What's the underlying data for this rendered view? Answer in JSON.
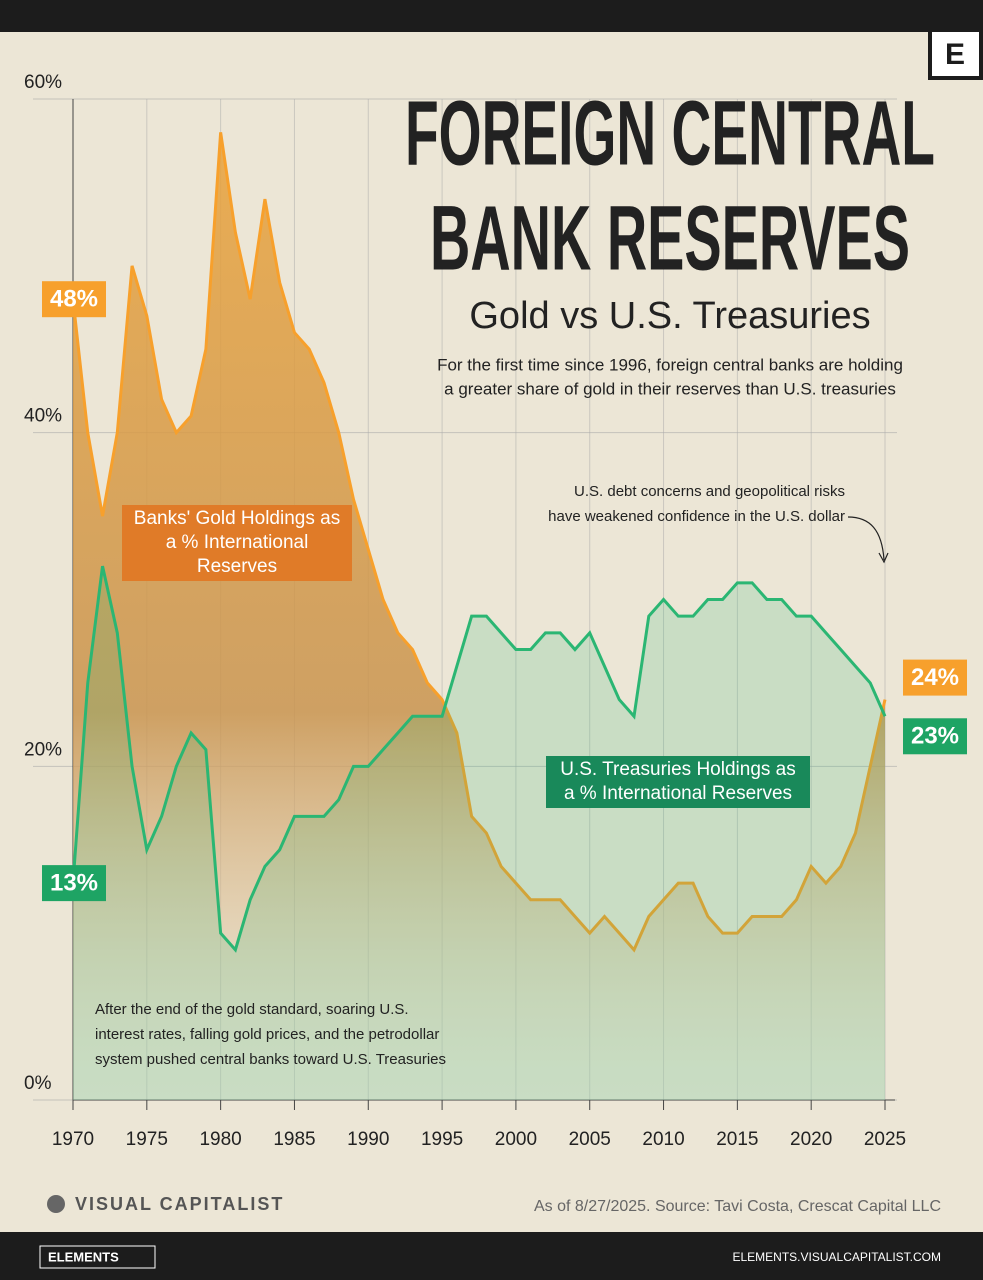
{
  "chart_data": {
    "type": "line",
    "title_lines": [
      "FOREIGN CENTRAL",
      "BANK RESERVES"
    ],
    "subtitle": "Gold vs U.S. Treasuries",
    "description_lines": [
      "For the first time since 1996, foreign central banks are holding",
      "a greater share of gold in their reserves than U.S. treasuries"
    ],
    "annotations": [
      {
        "lines": [
          "U.S. debt concerns and geopolitical risks",
          "have weakened confidence in the U.S. dollar"
        ]
      },
      {
        "lines": [
          "After the end of the gold standard, soaring U.S.",
          "interest rates, falling gold prices, and the petrodollar",
          "system pushed central banks toward U.S. Treasuries"
        ]
      }
    ],
    "source": "As of 8/27/2025. Source: Tavi Costa, Crescat Capital LLC",
    "brand": "VISUAL CAPITALIST",
    "logo": "E",
    "footer_left": "ELEMENTS",
    "footer_right": "ELEMENTS.VISUALCAPITALIST.COM",
    "x": [
      1970,
      1971,
      1972,
      1973,
      1974,
      1975,
      1976,
      1977,
      1978,
      1979,
      1980,
      1981,
      1982,
      1983,
      1984,
      1985,
      1986,
      1987,
      1988,
      1989,
      1990,
      1991,
      1992,
      1993,
      1994,
      1995,
      1996,
      1997,
      1998,
      1999,
      2000,
      2001,
      2002,
      2003,
      2004,
      2005,
      2006,
      2007,
      2008,
      2009,
      2010,
      2011,
      2012,
      2013,
      2014,
      2015,
      2016,
      2017,
      2018,
      2019,
      2020,
      2021,
      2022,
      2023,
      2024,
      2025
    ],
    "series": [
      {
        "name": "Banks' Gold Holdings as a % International Reserves",
        "color": "#f7a02c",
        "values": [
          48,
          40,
          35,
          40,
          50,
          47,
          42,
          40,
          41,
          45,
          58,
          52,
          48,
          54,
          49,
          46,
          45,
          43,
          40,
          36,
          33,
          30,
          28,
          27,
          25,
          24,
          22,
          17,
          16,
          14,
          13,
          12,
          12,
          12,
          11,
          10,
          11,
          10,
          9,
          11,
          12,
          13,
          13,
          11,
          10,
          10,
          11,
          11,
          11,
          12,
          14,
          13,
          14,
          16,
          20,
          24
        ],
        "value_labels": [
          "48%",
          null,
          null,
          null,
          null,
          null,
          null,
          null,
          null,
          null,
          null,
          null,
          null,
          null,
          null,
          null,
          null,
          null,
          null,
          null,
          null,
          null,
          null,
          null,
          null,
          null,
          null,
          null,
          null,
          null,
          null,
          null,
          null,
          null,
          null,
          null,
          null,
          null,
          null,
          null,
          null,
          null,
          null,
          null,
          null,
          null,
          null,
          null,
          null,
          null,
          null,
          null,
          null,
          null,
          null,
          "24%"
        ]
      },
      {
        "name": "U.S. Treasuries Holdings as a % International Reserves",
        "color": "#2bb673",
        "values": [
          13,
          25,
          32,
          28,
          20,
          15,
          17,
          20,
          22,
          21,
          10,
          9,
          12,
          14,
          15,
          17,
          17,
          17,
          18,
          20,
          20,
          21,
          22,
          23,
          23,
          23,
          26,
          29,
          29,
          28,
          27,
          27,
          28,
          28,
          27,
          28,
          26,
          24,
          23,
          29,
          30,
          29,
          29,
          30,
          30,
          31,
          31,
          30,
          30,
          29,
          29,
          28,
          27,
          26,
          25,
          23
        ],
        "value_labels": [
          "13%",
          null,
          null,
          null,
          null,
          null,
          null,
          null,
          null,
          null,
          null,
          null,
          null,
          null,
          null,
          null,
          null,
          null,
          null,
          null,
          null,
          null,
          null,
          null,
          null,
          null,
          null,
          null,
          null,
          null,
          null,
          null,
          null,
          null,
          null,
          null,
          null,
          null,
          null,
          null,
          null,
          null,
          null,
          null,
          null,
          null,
          null,
          null,
          null,
          null,
          null,
          null,
          null,
          null,
          null,
          "23%"
        ]
      }
    ],
    "xlim": [
      1970,
      2025
    ],
    "xticks": [
      1970,
      1975,
      1980,
      1985,
      1990,
      1995,
      2000,
      2005,
      2010,
      2015,
      2020,
      2025
    ],
    "ylim": [
      0,
      60
    ],
    "yticks": [
      {
        "value": 0,
        "label": "0%"
      },
      {
        "value": 20,
        "label": "20%"
      },
      {
        "value": 40,
        "label": "40%"
      },
      {
        "value": 60,
        "label": "60%"
      }
    ],
    "grid": true
  }
}
